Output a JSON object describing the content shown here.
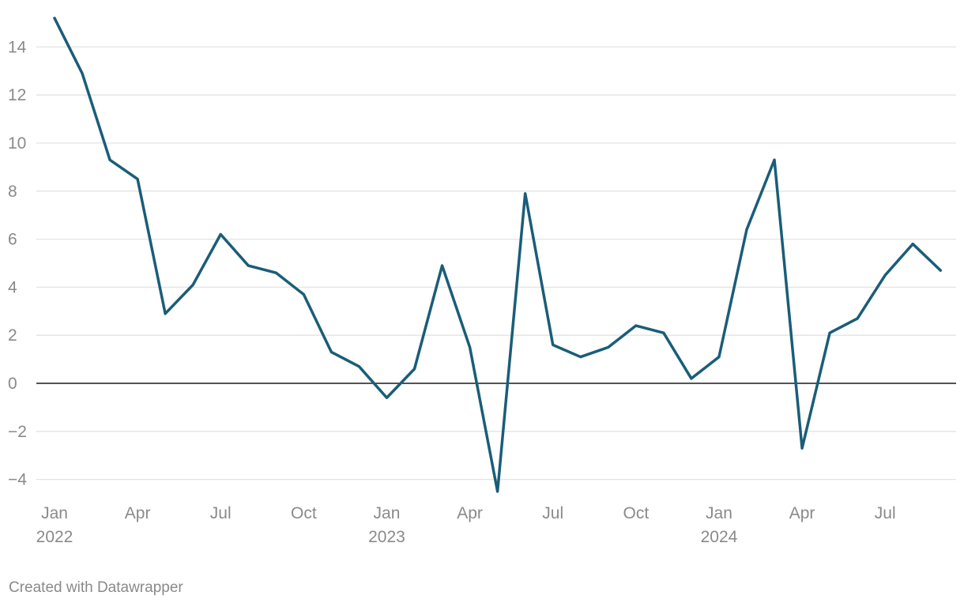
{
  "chart_data": {
    "type": "line",
    "title": "",
    "xlabel": "",
    "ylabel": "",
    "ylim": [
      -4.8,
      15.5
    ],
    "grid": true,
    "colors": {
      "line": "#1a5d78",
      "grid": "#e3e3e3",
      "zero": "#1a1a1a",
      "text": "#8a8a8a"
    },
    "y_ticks": [
      14,
      12,
      10,
      8,
      6,
      4,
      2,
      0,
      -2,
      -4
    ],
    "y_tick_labels": [
      "14",
      "12",
      "10",
      "8",
      "6",
      "4",
      "2",
      "0",
      "−2",
      "−4"
    ],
    "x_ticks": [
      {
        "index": 0,
        "label": "Jan",
        "year": "2022"
      },
      {
        "index": 3,
        "label": "Apr",
        "year": ""
      },
      {
        "index": 6,
        "label": "Jul",
        "year": ""
      },
      {
        "index": 9,
        "label": "Oct",
        "year": ""
      },
      {
        "index": 12,
        "label": "Jan",
        "year": "2023"
      },
      {
        "index": 15,
        "label": "Apr",
        "year": ""
      },
      {
        "index": 18,
        "label": "Jul",
        "year": ""
      },
      {
        "index": 21,
        "label": "Oct",
        "year": ""
      },
      {
        "index": 24,
        "label": "Jan",
        "year": "2024"
      },
      {
        "index": 27,
        "label": "Apr",
        "year": ""
      },
      {
        "index": 30,
        "label": "Jul",
        "year": ""
      }
    ],
    "x": [
      "2022-01",
      "2022-02",
      "2022-03",
      "2022-04",
      "2022-05",
      "2022-06",
      "2022-07",
      "2022-08",
      "2022-09",
      "2022-10",
      "2022-11",
      "2022-12",
      "2023-01",
      "2023-02",
      "2023-03",
      "2023-04",
      "2023-05",
      "2023-06",
      "2023-07",
      "2023-08",
      "2023-09",
      "2023-10",
      "2023-11",
      "2023-12",
      "2024-01",
      "2024-02",
      "2024-03",
      "2024-04",
      "2024-05",
      "2024-06",
      "2024-07",
      "2024-08",
      "2024-09"
    ],
    "series": [
      {
        "name": "value",
        "values": [
          15.2,
          12.9,
          9.3,
          8.5,
          2.9,
          4.1,
          6.2,
          4.9,
          4.6,
          3.7,
          1.3,
          0.7,
          -0.6,
          0.6,
          4.9,
          1.5,
          -4.5,
          7.9,
          1.6,
          1.1,
          1.5,
          2.4,
          2.1,
          0.2,
          1.1,
          6.4,
          9.3,
          -2.7,
          2.1,
          2.7,
          4.5,
          5.8,
          4.7
        ]
      }
    ]
  },
  "footer": {
    "credit": "Created with Datawrapper"
  }
}
